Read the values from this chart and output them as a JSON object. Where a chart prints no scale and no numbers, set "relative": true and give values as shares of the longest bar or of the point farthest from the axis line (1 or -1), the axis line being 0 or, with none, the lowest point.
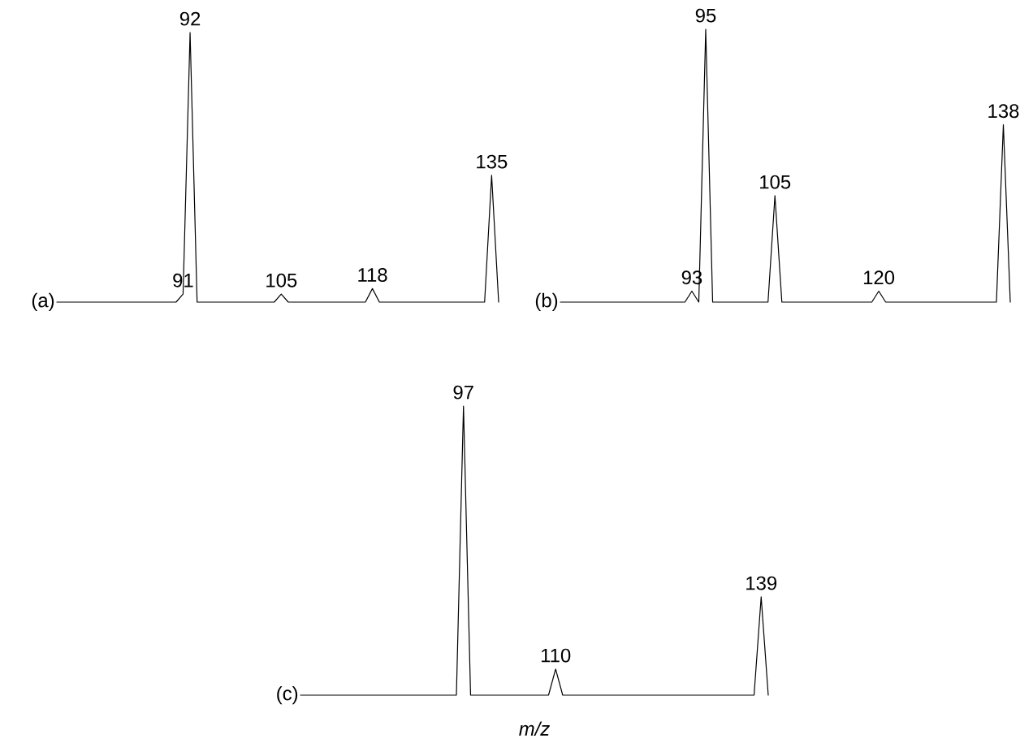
{
  "chart_data": [
    {
      "type": "line",
      "title": "(a)",
      "relative": true,
      "color": "#000000",
      "categories": [
        null,
        null,
        null,
        null,
        null,
        null,
        null,
        null,
        null,
        null,
        null,
        null,
        null,
        null,
        null,
        null,
        null,
        null,
        "91",
        "92",
        null,
        null,
        null,
        null,
        null,
        null,
        null,
        null,
        null,
        null,
        null,
        null,
        "105",
        null,
        null,
        null,
        null,
        null,
        null,
        null,
        null,
        null,
        null,
        null,
        null,
        "118",
        null,
        null,
        null,
        null,
        null,
        null,
        null,
        null,
        null,
        null,
        null,
        null,
        null,
        null,
        null,
        null,
        "135",
        null
      ],
      "values": [
        0,
        0,
        0,
        0,
        0,
        0,
        0,
        0,
        0,
        0,
        0,
        0,
        0,
        0,
        0,
        0,
        0,
        0,
        0.03,
        1,
        0,
        0,
        0,
        0,
        0,
        0,
        0,
        0,
        0,
        0,
        0,
        0,
        0.03,
        0,
        0,
        0,
        0,
        0,
        0,
        0,
        0,
        0,
        0,
        0,
        0,
        0.05,
        0,
        0,
        0,
        0,
        0,
        0,
        0,
        0,
        0,
        0,
        0,
        0,
        0,
        0,
        0,
        0,
        0.47,
        0
      ]
    },
    {
      "type": "line",
      "title": "(b)",
      "relative": true,
      "color": "#000000",
      "categories": [
        null,
        null,
        null,
        null,
        null,
        null,
        null,
        null,
        null,
        null,
        null,
        null,
        null,
        null,
        null,
        null,
        null,
        null,
        null,
        "93",
        null,
        "95",
        null,
        null,
        null,
        null,
        null,
        null,
        null,
        null,
        null,
        "105",
        null,
        null,
        null,
        null,
        null,
        null,
        null,
        null,
        null,
        null,
        null,
        null,
        null,
        null,
        "120",
        null,
        null,
        null,
        null,
        null,
        null,
        null,
        null,
        null,
        null,
        null,
        null,
        null,
        null,
        null,
        null,
        null,
        "138",
        null
      ],
      "values": [
        0,
        0,
        0,
        0,
        0,
        0,
        0,
        0,
        0,
        0,
        0,
        0,
        0,
        0,
        0,
        0,
        0,
        0,
        0,
        0.04,
        0,
        1,
        0,
        0,
        0,
        0,
        0,
        0,
        0,
        0,
        0,
        0.39,
        0,
        0,
        0,
        0,
        0,
        0,
        0,
        0,
        0,
        0,
        0,
        0,
        0,
        0,
        0.04,
        0,
        0,
        0,
        0,
        0,
        0,
        0,
        0,
        0,
        0,
        0,
        0,
        0,
        0,
        0,
        0,
        0,
        0.65,
        0
      ]
    },
    {
      "type": "line",
      "title": "(c)",
      "xlabel": "m/z",
      "relative": true,
      "color": "#000000",
      "categories": [
        null,
        null,
        null,
        null,
        null,
        null,
        null,
        null,
        null,
        null,
        null,
        null,
        null,
        null,
        null,
        null,
        null,
        null,
        null,
        null,
        null,
        null,
        null,
        "97",
        null,
        null,
        null,
        null,
        null,
        null,
        null,
        null,
        null,
        null,
        null,
        null,
        "110",
        null,
        null,
        null,
        null,
        null,
        null,
        null,
        null,
        null,
        null,
        null,
        null,
        null,
        null,
        null,
        null,
        null,
        null,
        null,
        null,
        null,
        null,
        null,
        null,
        null,
        null,
        null,
        null,
        "139",
        null
      ],
      "values": [
        0,
        0,
        0,
        0,
        0,
        0,
        0,
        0,
        0,
        0,
        0,
        0,
        0,
        0,
        0,
        0,
        0,
        0,
        0,
        0,
        0,
        0,
        0,
        1,
        0,
        0,
        0,
        0,
        0,
        0,
        0,
        0,
        0,
        0,
        0,
        0,
        0.09,
        0,
        0,
        0,
        0,
        0,
        0,
        0,
        0,
        0,
        0,
        0,
        0,
        0,
        0,
        0,
        0,
        0,
        0,
        0,
        0,
        0,
        0,
        0,
        0,
        0,
        0,
        0,
        0,
        0.34,
        0
      ]
    }
  ]
}
